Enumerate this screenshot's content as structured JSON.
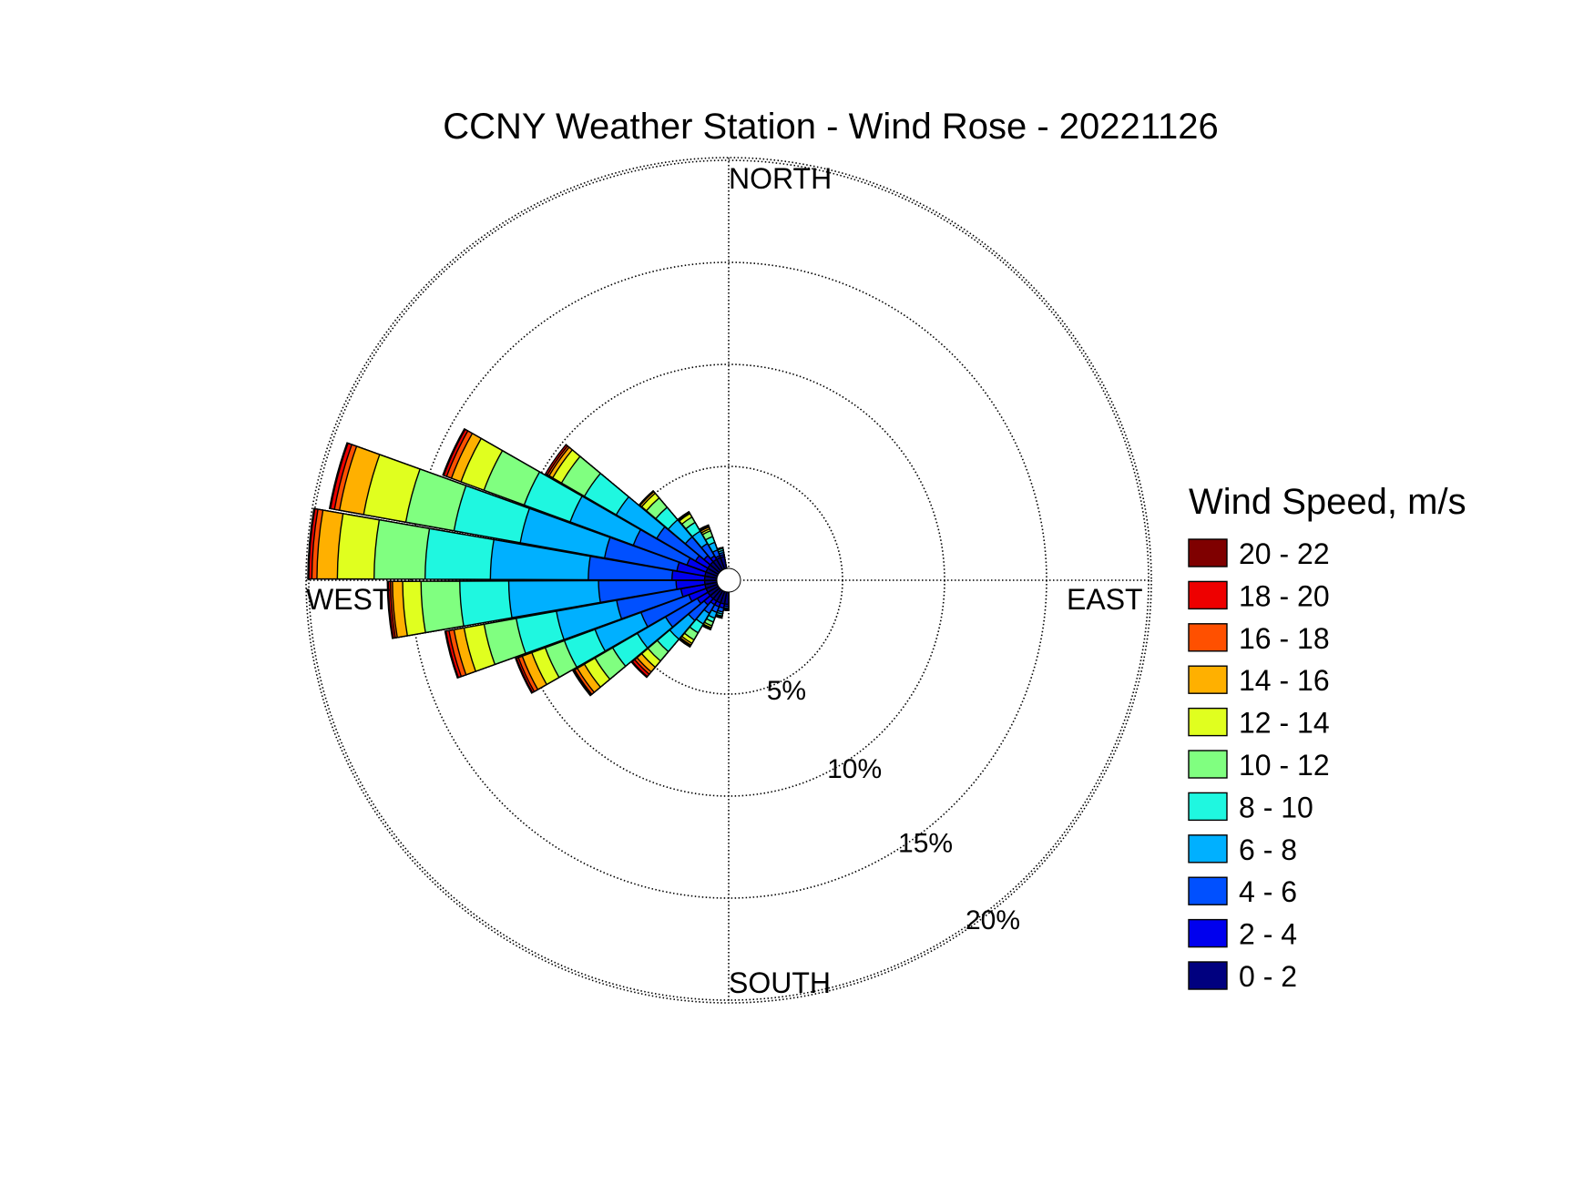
{
  "chart_data": {
    "type": "wind-rose",
    "title": "CCNY Weather Station - Wind Rose - 20221126",
    "direction_labels": {
      "north": "NORTH",
      "east": "EAST",
      "south": "SOUTH",
      "west": "WEST"
    },
    "radial_ticks": [
      5,
      10,
      15,
      20
    ],
    "radial_tick_labels": [
      "5%",
      "10%",
      "15%",
      "20%"
    ],
    "radial_max": 20,
    "legend": {
      "title": "Wind Speed, m/s",
      "bins": [
        {
          "label": "0 - 2",
          "color": "#00007f"
        },
        {
          "label": "2 - 4",
          "color": "#0000ee"
        },
        {
          "label": "4 - 6",
          "color": "#0050ff"
        },
        {
          "label": "6 - 8",
          "color": "#00b0ff"
        },
        {
          "label": "8 - 10",
          "color": "#1ff7e0"
        },
        {
          "label": "10 - 12",
          "color": "#80ff80"
        },
        {
          "label": "12 - 14",
          "color": "#e0ff1f"
        },
        {
          "label": "14 - 16",
          "color": "#ffb000"
        },
        {
          "label": "16 - 18",
          "color": "#ff5000"
        },
        {
          "label": "18 - 20",
          "color": "#ee0000"
        },
        {
          "label": "20 - 22",
          "color": "#7f0000"
        }
      ]
    },
    "directions_deg": [
      185,
      195,
      205,
      215,
      225,
      235,
      245,
      255,
      265,
      275,
      285,
      295,
      305,
      315,
      325,
      335,
      345
    ],
    "cumulative_percent": [
      [
        0.6,
        0.7,
        0.8,
        0.85,
        0.88,
        0.9,
        0.9,
        0.9,
        0.9,
        0.9,
        0.9
      ],
      [
        0.6,
        0.8,
        1.0,
        1.1,
        1.2,
        1.25,
        1.3,
        1.3,
        1.3,
        1.3,
        1.3
      ],
      [
        0.6,
        0.8,
        1.1,
        1.4,
        1.6,
        1.8,
        1.9,
        1.95,
        2.0,
        2.0,
        2.0
      ],
      [
        0.6,
        0.8,
        1.3,
        1.9,
        2.4,
        2.8,
        3.0,
        3.1,
        3.15,
        3.2,
        3.2
      ],
      [
        0.6,
        1.0,
        2.0,
        3.2,
        4.0,
        4.6,
        5.0,
        5.3,
        5.45,
        5.6,
        5.65
      ],
      [
        0.6,
        1.2,
        3.0,
        4.6,
        6.0,
        7.0,
        7.6,
        8.0,
        8.15,
        8.2,
        8.25
      ],
      [
        0.6,
        1.5,
        4.0,
        6.4,
        8.0,
        9.0,
        9.7,
        10.2,
        10.4,
        10.5,
        10.55
      ],
      [
        0.6,
        1.8,
        5.0,
        8.0,
        10.0,
        11.6,
        12.6,
        13.1,
        13.35,
        13.5,
        13.55
      ],
      [
        0.6,
        2.0,
        5.8,
        10.2,
        12.6,
        14.5,
        15.4,
        15.9,
        16.0,
        16.1,
        16.15
      ],
      [
        0.6,
        2.2,
        6.3,
        11.1,
        14.3,
        16.8,
        18.6,
        19.6,
        19.85,
        20.0,
        20.05
      ],
      [
        0.6,
        2.0,
        5.6,
        9.8,
        13.1,
        15.5,
        17.6,
        18.8,
        19.05,
        19.25,
        19.3
      ],
      [
        0.6,
        1.6,
        4.4,
        7.7,
        10.1,
        12.2,
        13.4,
        13.9,
        14.15,
        14.3,
        14.35
      ],
      [
        0.6,
        1.3,
        3.5,
        5.8,
        7.6,
        8.9,
        9.4,
        9.6,
        9.7,
        9.8,
        9.8
      ],
      [
        0.6,
        1.0,
        2.2,
        3.3,
        4.1,
        4.7,
        5.0,
        5.1,
        5.15,
        5.15,
        5.15
      ],
      [
        0.6,
        0.8,
        1.5,
        2.2,
        2.7,
        3.0,
        3.2,
        3.25,
        3.3,
        3.3,
        3.3
      ],
      [
        0.6,
        0.7,
        1.0,
        1.4,
        1.7,
        2.0,
        2.1,
        2.2,
        2.25,
        2.3,
        2.3
      ],
      [
        0.6,
        0.7,
        0.8,
        0.9,
        1.0,
        1.0,
        1.05,
        1.05,
        1.05,
        1.05,
        1.05
      ]
    ]
  }
}
